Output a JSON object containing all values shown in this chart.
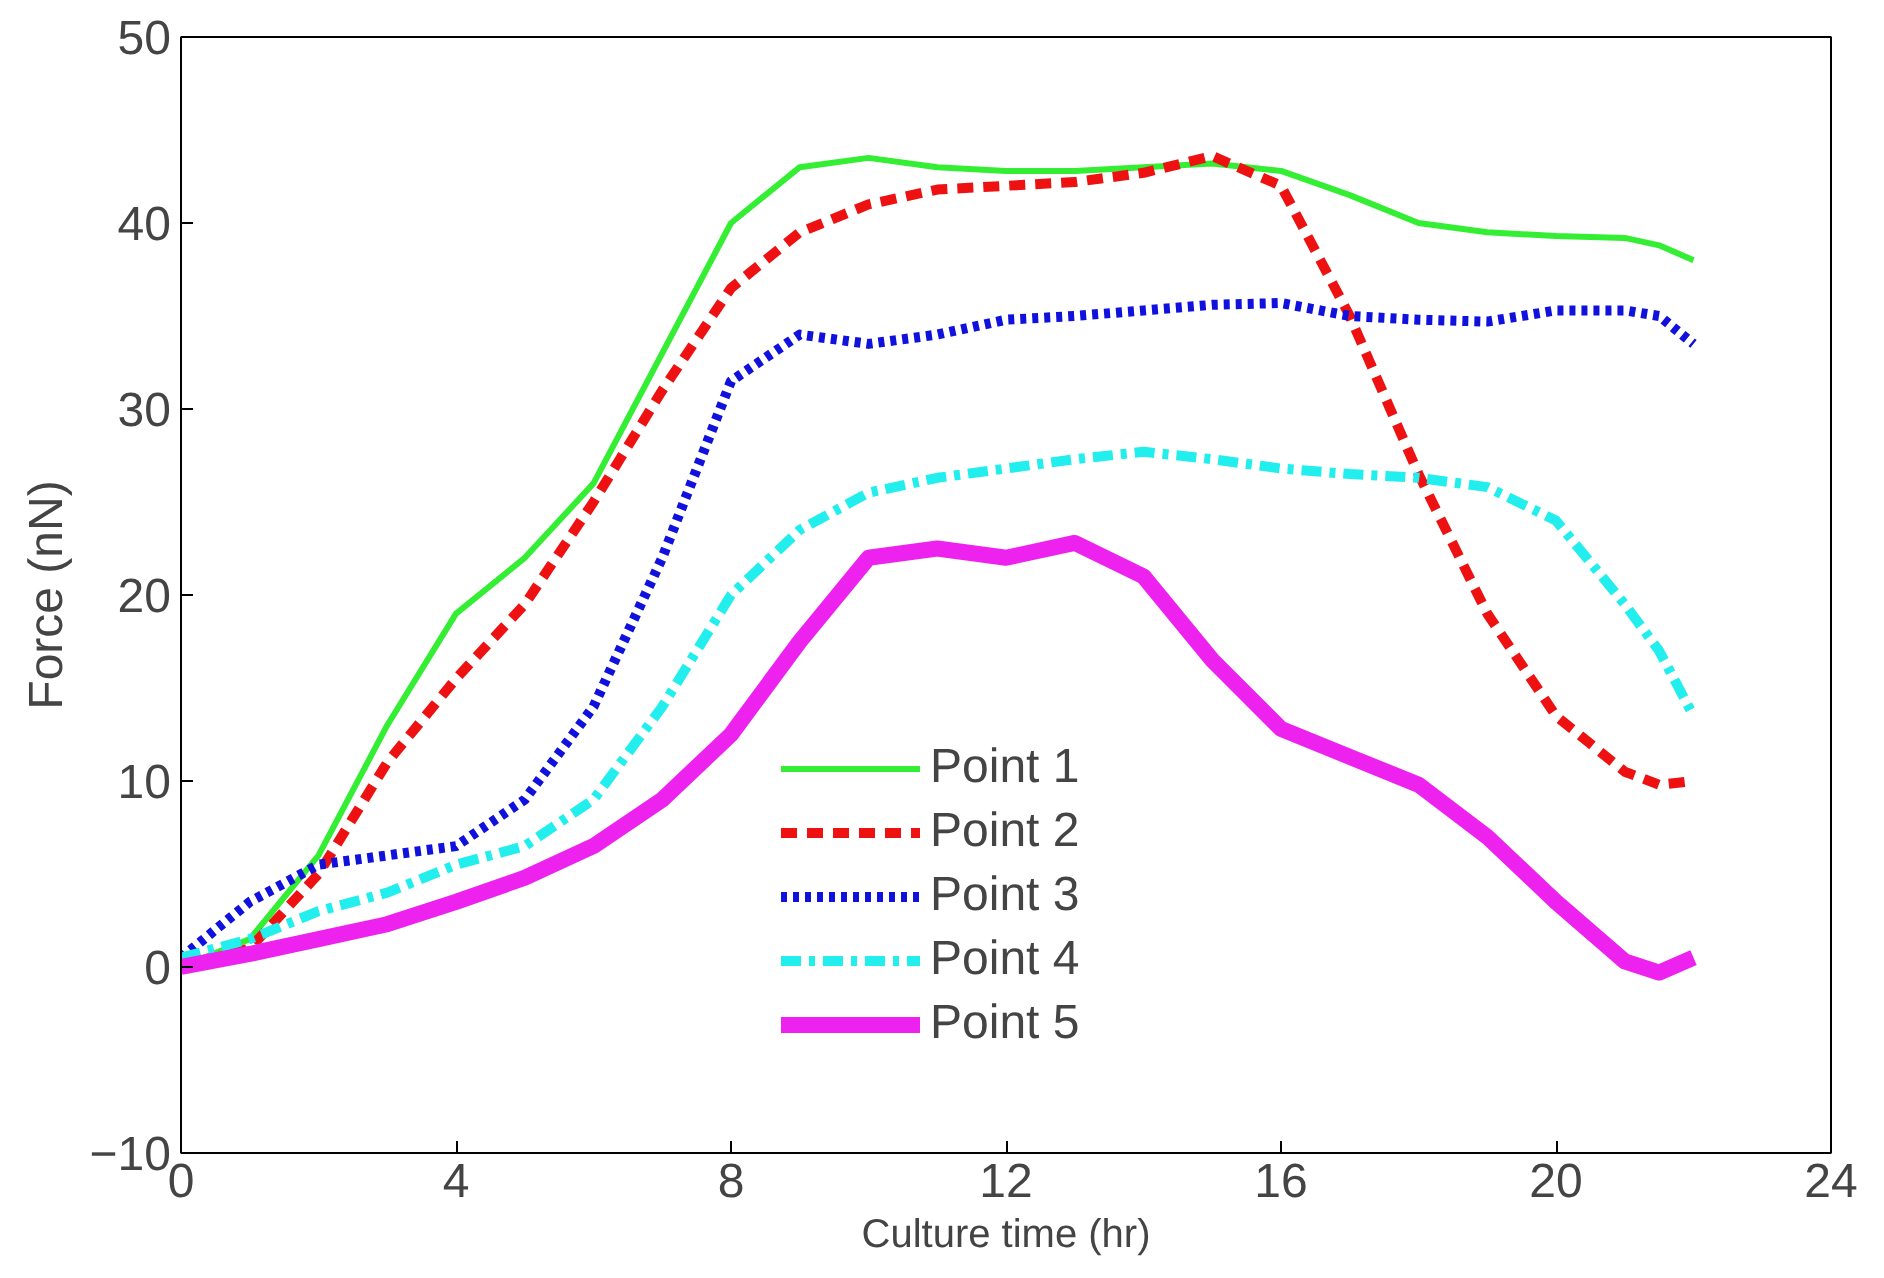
{
  "chart_data": {
    "type": "line",
    "xlabel": "Culture time (hr)",
    "ylabel": "Force (nN)",
    "x": [
      0,
      1,
      2,
      3,
      4,
      5,
      6,
      7,
      8,
      9,
      10,
      11,
      12,
      13,
      14,
      15,
      16,
      17,
      18,
      19,
      20,
      21,
      21.5,
      22
    ],
    "xlim": [
      0,
      24
    ],
    "xticks": [
      0,
      4,
      8,
      12,
      16,
      20,
      24
    ],
    "ylim": [
      -10,
      50
    ],
    "yticks": [
      -10,
      0,
      10,
      20,
      30,
      40,
      50
    ],
    "grid": false,
    "legend": "bottom",
    "series": [
      {
        "name": "Point 1",
        "color": "#33ee33",
        "line_style": "solid",
        "values": [
          0,
          1.5,
          6,
          13,
          19,
          22,
          26,
          33,
          40,
          43,
          43.5,
          43,
          42.8,
          42.8,
          43,
          43.2,
          42.8,
          41.5,
          40,
          39.5,
          39.3,
          39.2,
          38.8,
          38
        ]
      },
      {
        "name": "Point 2",
        "color": "#ee1111",
        "line_style": "dashed",
        "values": [
          0,
          1,
          5,
          11,
          15.5,
          19.5,
          25,
          31,
          36.5,
          39.5,
          41,
          41.8,
          42,
          42.2,
          42.7,
          43.6,
          42,
          35,
          26.5,
          19,
          13.5,
          10.5,
          9.8,
          10
        ]
      },
      {
        "name": "Point 3",
        "color": "#1111dd",
        "line_style": "dotted",
        "values": [
          0.5,
          3.5,
          5.5,
          6,
          6.5,
          9,
          14,
          22,
          31.5,
          34,
          33.5,
          34,
          34.8,
          35,
          35.3,
          35.6,
          35.7,
          35,
          34.8,
          34.7,
          35.3,
          35.3,
          35,
          33.5
        ]
      },
      {
        "name": "Point 4",
        "color": "#22eeee",
        "line_style": "dashdot",
        "values": [
          0.5,
          1.5,
          3,
          4,
          5.5,
          6.5,
          9,
          14,
          20,
          23.5,
          25.5,
          26.3,
          26.8,
          27.3,
          27.7,
          27.3,
          26.8,
          26.5,
          26.3,
          25.8,
          24,
          19.5,
          17,
          13.5
        ]
      },
      {
        "name": "Point 5",
        "color": "#ee22ee",
        "line_style": "solid",
        "values": [
          0,
          0.7,
          1.5,
          2.3,
          3.5,
          4.8,
          6.5,
          9,
          12.5,
          17.5,
          22,
          22.5,
          22,
          22.8,
          21,
          16.5,
          12.8,
          11.3,
          9.8,
          7,
          3.5,
          0.3,
          -0.3,
          0.5
        ]
      }
    ]
  }
}
